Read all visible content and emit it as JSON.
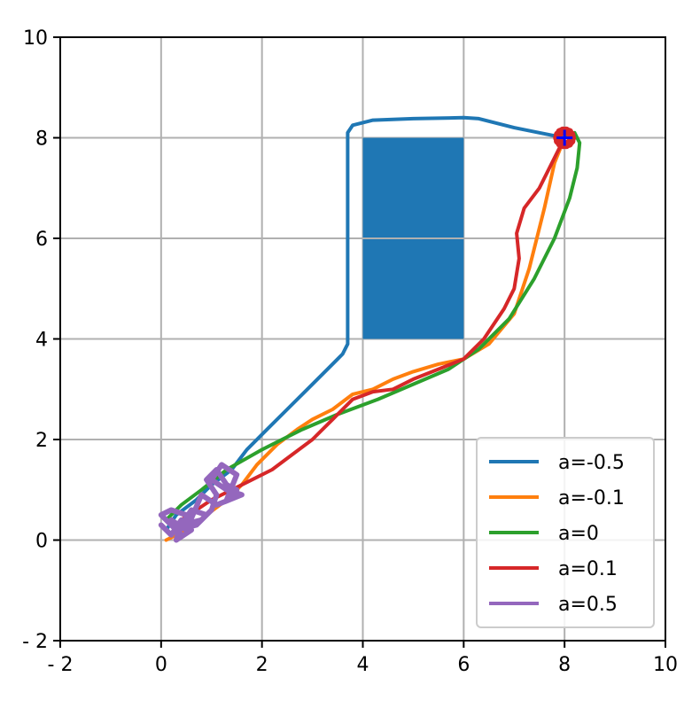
{
  "chart_data": {
    "type": "line",
    "title": "",
    "xlabel": "",
    "ylabel": "",
    "xlim": [
      -2,
      10
    ],
    "ylim": [
      -2,
      10
    ],
    "xticks": [
      -2,
      0,
      2,
      4,
      6,
      8,
      10
    ],
    "yticks": [
      -2,
      0,
      2,
      4,
      6,
      8,
      10
    ],
    "xtick_labels": [
      "- 2",
      "0",
      "2",
      "4",
      "6",
      "8",
      "10"
    ],
    "ytick_labels": [
      "- 2",
      "0",
      "2",
      "4",
      "6",
      "8",
      "10"
    ],
    "grid": true,
    "legend_position": "bottom-right",
    "obstacle": {
      "x": [
        4,
        6
      ],
      "y": [
        4,
        8
      ],
      "color": "#1f77b4"
    },
    "goal": {
      "x": 8,
      "y": 8,
      "marker": "+",
      "color": "#0000ff"
    },
    "series": [
      {
        "name": "a=-0.5",
        "color": "#1f77b4",
        "points": [
          [
            0.1,
            0.2
          ],
          [
            0.3,
            0.5
          ],
          [
            0.7,
            0.8
          ],
          [
            1.0,
            1.1
          ],
          [
            1.4,
            1.4
          ],
          [
            1.7,
            1.8
          ],
          [
            2.1,
            2.2
          ],
          [
            2.5,
            2.6
          ],
          [
            2.9,
            3.0
          ],
          [
            3.3,
            3.4
          ],
          [
            3.6,
            3.7
          ],
          [
            3.7,
            3.9
          ],
          [
            3.7,
            8.1
          ],
          [
            3.8,
            8.25
          ],
          [
            4.2,
            8.35
          ],
          [
            5.0,
            8.38
          ],
          [
            6.0,
            8.4
          ],
          [
            6.3,
            8.38
          ],
          [
            7.0,
            8.2
          ],
          [
            7.5,
            8.1
          ],
          [
            8.0,
            8.0
          ]
        ]
      },
      {
        "name": "a=-0.1",
        "color": "#ff7f0e",
        "points": [
          [
            0.1,
            0.0
          ],
          [
            0.5,
            0.2
          ],
          [
            0.9,
            0.5
          ],
          [
            1.3,
            0.8
          ],
          [
            1.6,
            1.1
          ],
          [
            1.9,
            1.5
          ],
          [
            2.3,
            1.9
          ],
          [
            2.7,
            2.2
          ],
          [
            3.0,
            2.4
          ],
          [
            3.4,
            2.6
          ],
          [
            3.8,
            2.9
          ],
          [
            4.2,
            3.0
          ],
          [
            4.6,
            3.2
          ],
          [
            5.0,
            3.35
          ],
          [
            5.5,
            3.5
          ],
          [
            6.0,
            3.6
          ],
          [
            6.5,
            3.9
          ],
          [
            7.0,
            4.5
          ],
          [
            7.3,
            5.4
          ],
          [
            7.6,
            6.6
          ],
          [
            7.8,
            7.5
          ],
          [
            8.0,
            8.0
          ]
        ]
      },
      {
        "name": "a=0",
        "color": "#2ca02c",
        "points": [
          [
            0.1,
            0.4
          ],
          [
            0.4,
            0.7
          ],
          [
            0.8,
            1.0
          ],
          [
            1.3,
            1.4
          ],
          [
            2.0,
            1.8
          ],
          [
            2.8,
            2.2
          ],
          [
            3.5,
            2.5
          ],
          [
            4.3,
            2.8
          ],
          [
            5.0,
            3.1
          ],
          [
            5.7,
            3.4
          ],
          [
            6.3,
            3.8
          ],
          [
            6.9,
            4.4
          ],
          [
            7.4,
            5.2
          ],
          [
            7.8,
            6.0
          ],
          [
            8.1,
            6.8
          ],
          [
            8.25,
            7.4
          ],
          [
            8.3,
            7.9
          ],
          [
            8.2,
            8.1
          ],
          [
            8.0,
            8.0
          ]
        ]
      },
      {
        "name": "a=0.1",
        "color": "#d62728",
        "points": [
          [
            0.4,
            0.4
          ],
          [
            0.7,
            0.6
          ],
          [
            1.0,
            0.8
          ],
          [
            1.4,
            1.0
          ],
          [
            1.8,
            1.2
          ],
          [
            2.2,
            1.4
          ],
          [
            2.6,
            1.7
          ],
          [
            3.0,
            2.0
          ],
          [
            3.4,
            2.4
          ],
          [
            3.8,
            2.8
          ],
          [
            4.2,
            2.95
          ],
          [
            4.6,
            3.0
          ],
          [
            5.0,
            3.2
          ],
          [
            5.5,
            3.4
          ],
          [
            6.0,
            3.6
          ],
          [
            6.4,
            4.0
          ],
          [
            6.8,
            4.6
          ],
          [
            7.0,
            5.0
          ],
          [
            7.1,
            5.6
          ],
          [
            7.05,
            6.1
          ],
          [
            7.2,
            6.6
          ],
          [
            7.5,
            7.0
          ],
          [
            7.7,
            7.4
          ],
          [
            7.9,
            7.8
          ],
          [
            8.0,
            8.0
          ]
        ]
      },
      {
        "name": "a=0.5",
        "color": "#9467bd",
        "points": [
          [
            0.0,
            0.3
          ],
          [
            0.2,
            0.1
          ],
          [
            0.4,
            0.4
          ],
          [
            0.3,
            0.0
          ],
          [
            0.6,
            0.2
          ],
          [
            0.5,
            0.5
          ],
          [
            0.2,
            0.6
          ],
          [
            0.0,
            0.5
          ],
          [
            0.3,
            0.2
          ],
          [
            0.7,
            0.3
          ],
          [
            0.9,
            0.5
          ],
          [
            0.6,
            0.6
          ],
          [
            0.4,
            0.3
          ],
          [
            0.8,
            0.4
          ],
          [
            1.0,
            0.6
          ],
          [
            1.1,
            0.9
          ],
          [
            0.9,
            1.2
          ],
          [
            1.1,
            1.4
          ],
          [
            1.3,
            1.1
          ],
          [
            1.5,
            1.0
          ],
          [
            1.3,
            0.8
          ],
          [
            1.5,
            1.3
          ],
          [
            1.2,
            1.5
          ],
          [
            1.0,
            1.2
          ],
          [
            1.3,
            1.0
          ],
          [
            1.6,
            0.9
          ],
          [
            1.1,
            0.7
          ],
          [
            0.8,
            0.9
          ],
          [
            0.5,
            0.2
          ],
          [
            0.2,
            0.4
          ],
          [
            0.4,
            0.1
          ]
        ]
      }
    ]
  }
}
